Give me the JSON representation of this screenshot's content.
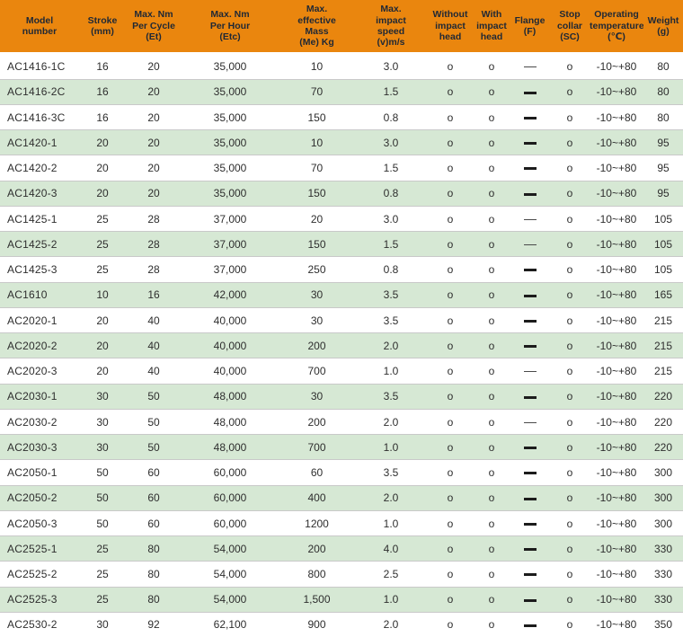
{
  "styles": {
    "header_bg": "#EA860E",
    "header_text": "#1F2835",
    "row_alt_bg": "#D6E8D4",
    "row_border": "#C9C9C9",
    "cell_text": "#2E2E2E"
  },
  "chart_data": {
    "type": "table",
    "columns": [
      {
        "id": "model",
        "label": "Model\nnumber"
      },
      {
        "id": "stroke",
        "label": "Stroke\n(mm)"
      },
      {
        "id": "et",
        "label": "Max. Nm\nPer Cycle\n(Et)"
      },
      {
        "id": "etc",
        "label": "Max. Nm\nPer Hour\n(Etc)"
      },
      {
        "id": "mass",
        "label": "Max.\neffective\nMass\n(Me) Kg"
      },
      {
        "id": "speed",
        "label": "Max.\nimpact\nspeed\n(v)m/s"
      },
      {
        "id": "without_head",
        "label": "Without\nimpact\nhead"
      },
      {
        "id": "with_head",
        "label": "With\nimpact\nhead"
      },
      {
        "id": "flange",
        "label": "Flange\n(F)"
      },
      {
        "id": "stop_collar",
        "label": "Stop\ncollar\n(SC)"
      },
      {
        "id": "temp",
        "label": "Operating\ntemperature\n(℃)"
      },
      {
        "id": "weight",
        "label": "Weight\n(g)"
      }
    ],
    "flange_legend": "dash cell values: thin = light em-dash, bold = heavy dash (feature not available)",
    "rows": [
      [
        "AC1416-1C",
        "16",
        "20",
        "35,000",
        "10",
        "3.0",
        "o",
        "o",
        "thin",
        "o",
        "-10~+80",
        "80"
      ],
      [
        "AC1416-2C",
        "16",
        "20",
        "35,000",
        "70",
        "1.5",
        "o",
        "o",
        "bold",
        "o",
        "-10~+80",
        "80"
      ],
      [
        "AC1416-3C",
        "16",
        "20",
        "35,000",
        "150",
        "0.8",
        "o",
        "o",
        "bold",
        "o",
        "-10~+80",
        "80"
      ],
      [
        "AC1420-1",
        "20",
        "20",
        "35,000",
        "10",
        "3.0",
        "o",
        "o",
        "bold",
        "o",
        "-10~+80",
        "95"
      ],
      [
        "AC1420-2",
        "20",
        "20",
        "35,000",
        "70",
        "1.5",
        "o",
        "o",
        "bold",
        "o",
        "-10~+80",
        "95"
      ],
      [
        "AC1420-3",
        "20",
        "20",
        "35,000",
        "150",
        "0.8",
        "o",
        "o",
        "bold",
        "o",
        "-10~+80",
        "95"
      ],
      [
        "AC1425-1",
        "25",
        "28",
        "37,000",
        "20",
        "3.0",
        "o",
        "o",
        "thin",
        "o",
        "-10~+80",
        "105"
      ],
      [
        "AC1425-2",
        "25",
        "28",
        "37,000",
        "150",
        "1.5",
        "o",
        "o",
        "thin",
        "o",
        "-10~+80",
        "105"
      ],
      [
        "AC1425-3",
        "25",
        "28",
        "37,000",
        "250",
        "0.8",
        "o",
        "o",
        "bold",
        "o",
        "-10~+80",
        "105"
      ],
      [
        "AC1610",
        "10",
        "16",
        "42,000",
        "30",
        "3.5",
        "o",
        "o",
        "bold",
        "o",
        "-10~+80",
        "165"
      ],
      [
        "AC2020-1",
        "20",
        "40",
        "40,000",
        "30",
        "3.5",
        "o",
        "o",
        "bold",
        "o",
        "-10~+80",
        "215"
      ],
      [
        "AC2020-2",
        "20",
        "40",
        "40,000",
        "200",
        "2.0",
        "o",
        "o",
        "bold",
        "o",
        "-10~+80",
        "215"
      ],
      [
        "AC2020-3",
        "20",
        "40",
        "40,000",
        "700",
        "1.0",
        "o",
        "o",
        "thin",
        "o",
        "-10~+80",
        "215"
      ],
      [
        "AC2030-1",
        "30",
        "50",
        "48,000",
        "30",
        "3.5",
        "o",
        "o",
        "bold",
        "o",
        "-10~+80",
        "220"
      ],
      [
        "AC2030-2",
        "30",
        "50",
        "48,000",
        "200",
        "2.0",
        "o",
        "o",
        "thin",
        "o",
        "-10~+80",
        "220"
      ],
      [
        "AC2030-3",
        "30",
        "50",
        "48,000",
        "700",
        "1.0",
        "o",
        "o",
        "bold",
        "o",
        "-10~+80",
        "220"
      ],
      [
        "AC2050-1",
        "50",
        "60",
        "60,000",
        "60",
        "3.5",
        "o",
        "o",
        "bold",
        "o",
        "-10~+80",
        "300"
      ],
      [
        "AC2050-2",
        "50",
        "60",
        "60,000",
        "400",
        "2.0",
        "o",
        "o",
        "bold",
        "o",
        "-10~+80",
        "300"
      ],
      [
        "AC2050-3",
        "50",
        "60",
        "60,000",
        "1200",
        "1.0",
        "o",
        "o",
        "bold",
        "o",
        "-10~+80",
        "300"
      ],
      [
        "AC2525-1",
        "25",
        "80",
        "54,000",
        "200",
        "4.0",
        "o",
        "o",
        "bold",
        "o",
        "-10~+80",
        "330"
      ],
      [
        "AC2525-2",
        "25",
        "80",
        "54,000",
        "800",
        "2.5",
        "o",
        "o",
        "bold",
        "o",
        "-10~+80",
        "330"
      ],
      [
        "AC2525-3",
        "25",
        "80",
        "54,000",
        "1,500",
        "1.0",
        "o",
        "o",
        "bold",
        "o",
        "-10~+80",
        "330"
      ],
      [
        "AC2530-2",
        "30",
        "92",
        "62,100",
        "900",
        "2.0",
        "o",
        "o",
        "bold",
        "o",
        "-10~+80",
        "350"
      ]
    ]
  }
}
